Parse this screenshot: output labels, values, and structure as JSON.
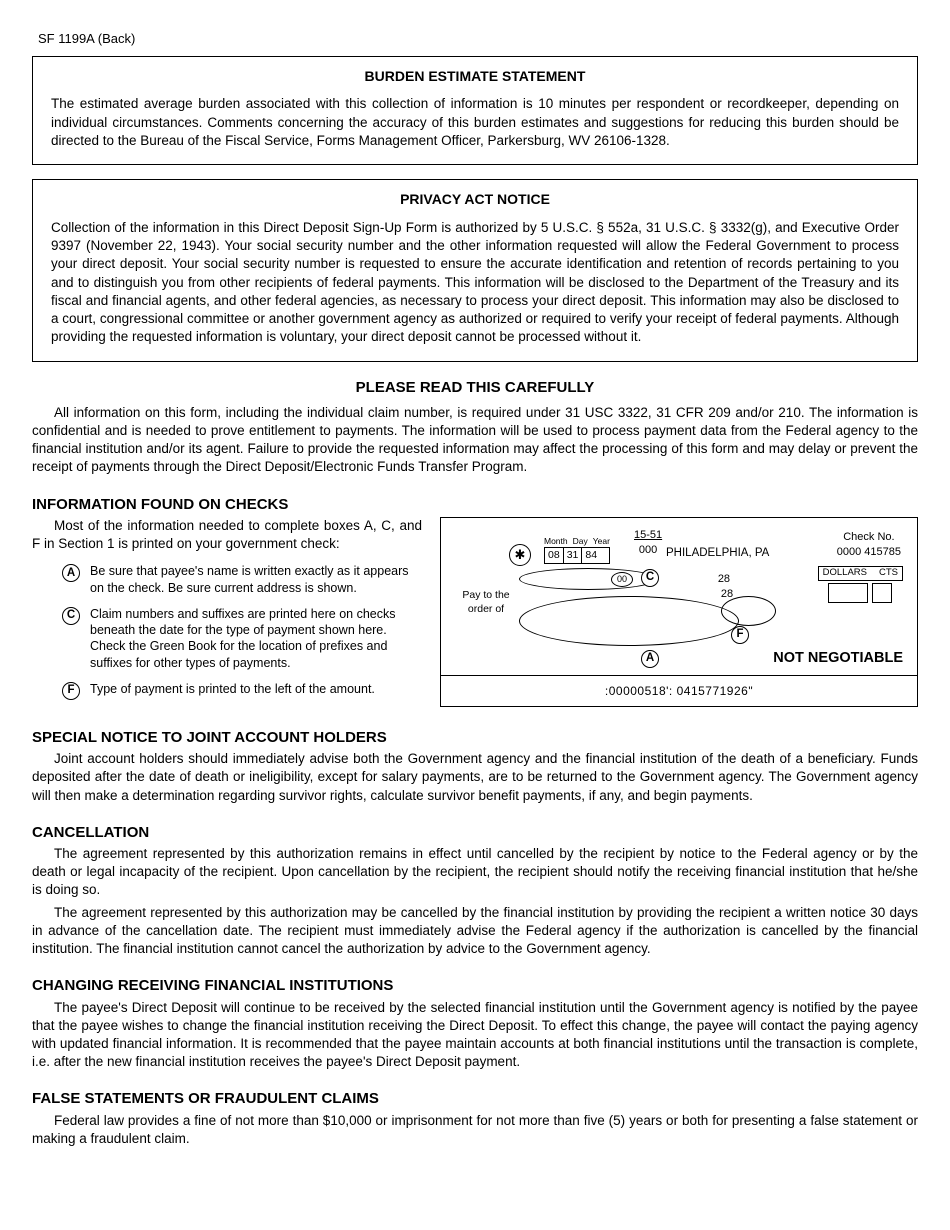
{
  "header": {
    "form_id": "SF 1199A (Back)"
  },
  "burden": {
    "title": "BURDEN ESTIMATE STATEMENT",
    "body": "The estimated average burden associated with this collection of information is 10 minutes per respondent or recordkeeper, depending on individual circumstances.  Comments concerning the accuracy of this burden estimates and suggestions for reducing this burden should be directed to the Bureau of the Fiscal Service, Forms Management Officer, Parkersburg, WV 26106-1328."
  },
  "privacy": {
    "title": "PRIVACY ACT NOTICE",
    "body": "Collection of the information in this Direct Deposit Sign-Up Form is authorized by 5 U.S.C. § 552a, 31 U.S.C. § 3332(g), and Executive Order 9397 (November 22, 1943).  Your social security number and the other information requested will allow the Federal Government to process your direct deposit.  Your social security number is requested to ensure the accurate identification and retention of records pertaining to you and to distinguish you from other recipients of federal payments.  This information will be disclosed to the Department of the Treasury and its fiscal and financial agents, and other federal agencies, as necessary to process your direct deposit.  This information may also be disclosed to a court, congressional committee or another government agency as authorized or required to verify your receipt of federal payments.  Although providing the requested information is voluntary, your direct deposit cannot be processed without it."
  },
  "read_carefully": {
    "title": "PLEASE READ THIS CAREFULLY",
    "body": "All information on this form, including the individual claim number, is required under 31 USC 3322, 31 CFR 209 and/or 210.  The information is confidential and is needed to prove entitlement to payments.  The information will be used to process payment data from the Federal agency to the financial institution and/or its agent.  Failure to provide the requested information may affect the processing of this form and may delay or prevent the receipt of payments through the Direct Deposit/Electronic Funds Transfer Program."
  },
  "info_checks": {
    "title": "INFORMATION FOUND ON CHECKS",
    "intro": "Most of the information needed to complete boxes A, C, and F in Section 1 is printed on your government check:",
    "items": [
      {
        "letter": "A",
        "text": "Be sure that payee's name is written exactly as it appears on the check.  Be sure current address is shown."
      },
      {
        "letter": "C",
        "text": "Claim numbers and suffixes are printed here on checks beneath the date for the type of payment shown here.  Check the Green Book for the location of prefixes and suffixes for other types of payments."
      },
      {
        "letter": "F",
        "text": "Type of payment is printed to the left of the amount."
      }
    ]
  },
  "check": {
    "date_labels": [
      "Month",
      "Day",
      "Year"
    ],
    "date_values": [
      "08",
      "31",
      "84"
    ],
    "routing_top": "15-51",
    "routing_bot": "000",
    "city": "PHILADELPHIA, PA",
    "check_no_label": "Check No.",
    "check_no": "0000 415785",
    "pay_to": "Pay to the order of",
    "oval00": "00",
    "n28a": "28",
    "n28b": "28",
    "dollars": "DOLLARS",
    "cts": "CTS",
    "not_negotiable": "NOT NEGOTIABLE",
    "micr": ":00000518':  0415771926\"",
    "callout_A": "A",
    "callout_C": "C",
    "callout_F": "F"
  },
  "joint": {
    "title": "SPECIAL NOTICE TO JOINT ACCOUNT HOLDERS",
    "body": "Joint account holders should immediately advise both the Government agency and the financial institution of the death of a beneficiary.  Funds deposited after the date of death or ineligibility, except for salary payments, are to be returned to the Government agency.  The Government agency will then make a determination regarding survivor rights, calculate survivor benefit payments, if any, and begin payments."
  },
  "cancellation": {
    "title": "CANCELLATION",
    "p1": "The agreement represented by this authorization remains in effect until cancelled by the recipient by notice to the Federal agency or by the death or legal incapacity of the recipient.  Upon cancellation by the recipient, the recipient should notify the receiving financial institution that he/she is doing so.",
    "p2": "The agreement represented by this authorization may be cancelled by the financial institution by providing the recipient a written notice 30 days in advance of the cancellation date.  The recipient must immediately advise the Federal agency if the authorization is cancelled by the financial institution.  The financial institution cannot cancel the authorization by advice to the Government agency."
  },
  "changing": {
    "title": "CHANGING RECEIVING FINANCIAL INSTITUTIONS",
    "body": "The payee's Direct Deposit will continue to be received by the selected financial institution until the Government agency is notified by the payee that the payee wishes to change the financial institution receiving the Direct Deposit.  To effect this change, the payee will contact the paying agency with updated financial information.  It is recommended that the payee maintain accounts at both financial institutions until the transaction is complete, i.e. after the new financial institution receives the payee's Direct Deposit payment."
  },
  "false_stmt": {
    "title": "FALSE STATEMENTS OR FRAUDULENT CLAIMS",
    "body": "Federal law provides a fine of not more than $10,000 or imprisonment for not more than five (5) years or both for presenting a false statement or making a fraudulent claim."
  }
}
